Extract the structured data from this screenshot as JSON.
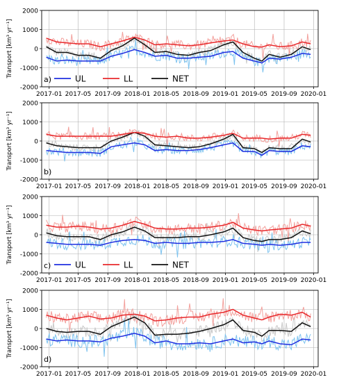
{
  "figure": {
    "ylabel": "Transport [km³ yr⁻¹]",
    "x_ticks": [
      "2017-01",
      "2017-05",
      "2017-09",
      "2018-01",
      "2018-05",
      "2018-09",
      "2019-01",
      "2019-05",
      "2019-09",
      "2020-01"
    ],
    "y_ticks": [
      "2000",
      "1000",
      "0",
      "-1000",
      "-2000"
    ]
  },
  "colors": {
    "UL_line": "#1f2fe0",
    "UL_raw": "#7ec3ef",
    "LL_line": "#e8282b",
    "LL_raw": "#f3a09c",
    "NET_line": "#111111",
    "NET_raw": "#c8c8c8",
    "grid": "#b0b0b0"
  },
  "chart_data": [
    {
      "type": "line",
      "panel_label": "a)",
      "legend": true,
      "legend_position": "bottom-left",
      "xlabel": "",
      "ylabel": "Transport [km³ yr⁻¹]",
      "ylim": [
        -2000,
        2000
      ],
      "grid": true,
      "x": [
        "2016-12-20",
        "2017-02-01",
        "2017-03-15",
        "2017-05-01",
        "2017-06-15",
        "2017-08-01",
        "2017-09-15",
        "2017-11-01",
        "2017-12-20",
        "2018-02-01",
        "2018-03-15",
        "2018-05-01",
        "2018-06-15",
        "2018-08-01",
        "2018-09-15",
        "2018-11-01",
        "2018-12-25",
        "2019-02-01",
        "2019-03-15",
        "2019-05-01",
        "2019-06-01",
        "2019-07-01",
        "2019-08-15",
        "2019-10-01",
        "2019-11-15",
        "2019-12-20"
      ],
      "series": [
        {
          "name": "UL",
          "values": [
            -450,
            -650,
            -600,
            -650,
            -650,
            -650,
            -400,
            -250,
            -50,
            -200,
            -400,
            -350,
            -500,
            -500,
            -450,
            -400,
            -200,
            -150,
            -500,
            -650,
            -750,
            -500,
            -550,
            -450,
            -250,
            -300
          ]
        },
        {
          "name": "LL",
          "values": [
            550,
            350,
            300,
            250,
            250,
            100,
            250,
            400,
            600,
            450,
            200,
            250,
            200,
            150,
            200,
            300,
            400,
            450,
            250,
            100,
            80,
            200,
            100,
            150,
            350,
            250
          ]
        },
        {
          "name": "NET",
          "values": [
            100,
            -200,
            -200,
            -350,
            -350,
            -500,
            -100,
            150,
            550,
            200,
            -200,
            -150,
            -300,
            -350,
            -200,
            -100,
            200,
            350,
            -200,
            -500,
            -650,
            -300,
            -450,
            -300,
            100,
            -50
          ]
        }
      ]
    },
    {
      "type": "line",
      "panel_label": "b)",
      "legend": false,
      "xlabel": "",
      "ylabel": "Transport [km³ yr⁻¹]",
      "ylim": [
        -2000,
        2000
      ],
      "grid": true,
      "x": [
        "2016-12-20",
        "2017-02-01",
        "2017-03-15",
        "2017-05-01",
        "2017-06-15",
        "2017-08-01",
        "2017-09-15",
        "2017-11-01",
        "2017-12-20",
        "2018-02-01",
        "2018-03-15",
        "2018-05-01",
        "2018-06-15",
        "2018-08-01",
        "2018-09-15",
        "2018-11-01",
        "2018-12-25",
        "2019-02-01",
        "2019-03-15",
        "2019-05-01",
        "2019-06-01",
        "2019-07-01",
        "2019-08-15",
        "2019-10-01",
        "2019-11-15",
        "2019-12-20"
      ],
      "series": [
        {
          "name": "UL",
          "values": [
            -500,
            -550,
            -600,
            -600,
            -600,
            -650,
            -300,
            -200,
            -100,
            -200,
            -500,
            -450,
            -500,
            -500,
            -450,
            -350,
            -200,
            -100,
            -550,
            -550,
            -750,
            -500,
            -550,
            -550,
            -250,
            -300
          ]
        },
        {
          "name": "LL",
          "values": [
            350,
            250,
            250,
            250,
            250,
            250,
            250,
            350,
            450,
            400,
            250,
            200,
            250,
            150,
            150,
            200,
            300,
            400,
            150,
            150,
            150,
            100,
            150,
            150,
            350,
            300
          ]
        },
        {
          "name": "NET",
          "values": [
            -100,
            -250,
            -300,
            -350,
            -350,
            -350,
            0,
            200,
            450,
            250,
            -200,
            -250,
            -300,
            -350,
            -300,
            -150,
            100,
            350,
            -350,
            -400,
            -600,
            -350,
            -400,
            -400,
            100,
            -50
          ]
        }
      ]
    },
    {
      "type": "line",
      "panel_label": "c)",
      "legend": true,
      "legend_position": "bottom",
      "xlabel": "",
      "ylabel": "Transport [km³ yr⁻¹]",
      "ylim": [
        -2000,
        2000
      ],
      "grid": true,
      "x": [
        "2016-12-20",
        "2017-02-01",
        "2017-03-15",
        "2017-05-01",
        "2017-06-15",
        "2017-08-01",
        "2017-09-15",
        "2017-11-01",
        "2017-12-20",
        "2018-02-01",
        "2018-03-15",
        "2018-05-01",
        "2018-06-15",
        "2018-08-01",
        "2018-09-15",
        "2018-11-01",
        "2018-12-25",
        "2019-02-01",
        "2019-03-15",
        "2019-05-01",
        "2019-06-01",
        "2019-07-01",
        "2019-08-15",
        "2019-10-01",
        "2019-11-15",
        "2019-12-20"
      ],
      "series": [
        {
          "name": "UL",
          "values": [
            -400,
            -450,
            -500,
            -500,
            -500,
            -550,
            -400,
            -300,
            -250,
            -300,
            -450,
            -400,
            -450,
            -450,
            -400,
            -400,
            -350,
            -250,
            -450,
            -500,
            -550,
            -500,
            -550,
            -500,
            -400,
            -400
          ]
        },
        {
          "name": "LL",
          "values": [
            500,
            400,
            400,
            450,
            400,
            300,
            350,
            500,
            700,
            550,
            350,
            300,
            300,
            350,
            350,
            400,
            500,
            650,
            350,
            250,
            200,
            250,
            300,
            350,
            550,
            450
          ]
        },
        {
          "name": "NET",
          "values": [
            100,
            -50,
            -100,
            -100,
            -100,
            -250,
            0,
            150,
            400,
            200,
            -150,
            -150,
            -150,
            -100,
            -100,
            0,
            150,
            350,
            -150,
            -300,
            -350,
            -250,
            -250,
            -150,
            200,
            50
          ]
        }
      ]
    },
    {
      "type": "line",
      "panel_label": "d)",
      "legend": false,
      "xlabel": "",
      "ylabel": "Transport [km³ yr⁻¹]",
      "ylim": [
        -2000,
        2000
      ],
      "grid": true,
      "x": [
        "2016-12-20",
        "2017-02-01",
        "2017-03-15",
        "2017-05-01",
        "2017-06-15",
        "2017-08-01",
        "2017-09-15",
        "2017-11-01",
        "2017-12-20",
        "2018-02-01",
        "2018-03-15",
        "2018-05-01",
        "2018-06-15",
        "2018-08-01",
        "2018-09-15",
        "2018-11-01",
        "2018-12-25",
        "2019-02-01",
        "2019-03-15",
        "2019-05-01",
        "2019-06-01",
        "2019-07-01",
        "2019-08-15",
        "2019-10-01",
        "2019-11-15",
        "2019-12-20"
      ],
      "series": [
        {
          "name": "UL",
          "values": [
            -550,
            -650,
            -600,
            -650,
            -650,
            -700,
            -500,
            -400,
            -250,
            -400,
            -750,
            -650,
            -800,
            -800,
            -750,
            -800,
            -650,
            -550,
            -750,
            -700,
            -800,
            -650,
            -800,
            -850,
            -550,
            -600
          ]
        },
        {
          "name": "LL",
          "values": [
            700,
            550,
            450,
            550,
            650,
            500,
            550,
            700,
            750,
            650,
            400,
            450,
            550,
            600,
            600,
            750,
            850,
            1000,
            700,
            550,
            450,
            600,
            750,
            700,
            850,
            600
          ]
        },
        {
          "name": "NET",
          "values": [
            0,
            -150,
            -200,
            -150,
            -150,
            -300,
            100,
            350,
            600,
            300,
            -350,
            -300,
            -300,
            -250,
            -150,
            0,
            200,
            450,
            -100,
            -200,
            -400,
            -100,
            -100,
            -150,
            300,
            100
          ]
        }
      ]
    }
  ]
}
